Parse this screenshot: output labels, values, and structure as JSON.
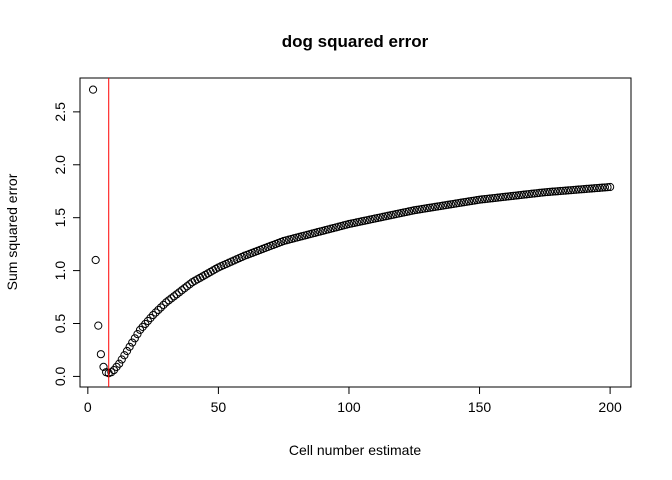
{
  "chart_data": {
    "type": "scatter",
    "title": "dog squared error",
    "xlabel": "Cell number estimate",
    "ylabel": "Sum squared error",
    "xlim": [
      -3,
      208
    ],
    "ylim": [
      -0.1,
      2.82
    ],
    "xticks": [
      0,
      50,
      100,
      150,
      200
    ],
    "yticks": [
      0.0,
      0.5,
      1.0,
      1.5,
      2.0,
      2.5
    ],
    "xtick_labels": [
      "0",
      "50",
      "100",
      "150",
      "200"
    ],
    "ytick_labels": [
      "0.0",
      "0.5",
      "1.0",
      "1.5",
      "2.0",
      "2.5"
    ],
    "grid": false,
    "legend": "none",
    "point_color": "#000000",
    "vline": {
      "x": 8,
      "color": "#ff0000"
    },
    "early_points": [
      {
        "x": 2,
        "y": 2.71
      },
      {
        "x": 3,
        "y": 1.1
      },
      {
        "x": 4,
        "y": 0.48
      },
      {
        "x": 5,
        "y": 0.21
      },
      {
        "x": 6,
        "y": 0.09
      },
      {
        "x": 7,
        "y": 0.04
      },
      {
        "x": 8,
        "y": 0.03
      },
      {
        "x": 9,
        "y": 0.04
      },
      {
        "x": 10,
        "y": 0.06
      },
      {
        "x": 11,
        "y": 0.09
      },
      {
        "x": 12,
        "y": 0.12
      },
      {
        "x": 13,
        "y": 0.16
      },
      {
        "x": 14,
        "y": 0.2
      },
      {
        "x": 15,
        "y": 0.24
      },
      {
        "x": 16,
        "y": 0.28
      },
      {
        "x": 17,
        "y": 0.32
      },
      {
        "x": 18,
        "y": 0.36
      },
      {
        "x": 19,
        "y": 0.4
      },
      {
        "x": 20,
        "y": 0.44
      }
    ],
    "curve_anchors": [
      {
        "x": 20,
        "y": 0.44
      },
      {
        "x": 25,
        "y": 0.58
      },
      {
        "x": 30,
        "y": 0.7
      },
      {
        "x": 40,
        "y": 0.89
      },
      {
        "x": 50,
        "y": 1.03
      },
      {
        "x": 60,
        "y": 1.14
      },
      {
        "x": 75,
        "y": 1.28
      },
      {
        "x": 100,
        "y": 1.44
      },
      {
        "x": 125,
        "y": 1.57
      },
      {
        "x": 150,
        "y": 1.67
      },
      {
        "x": 175,
        "y": 1.74
      },
      {
        "x": 200,
        "y": 1.79
      }
    ],
    "x_max": 200
  }
}
